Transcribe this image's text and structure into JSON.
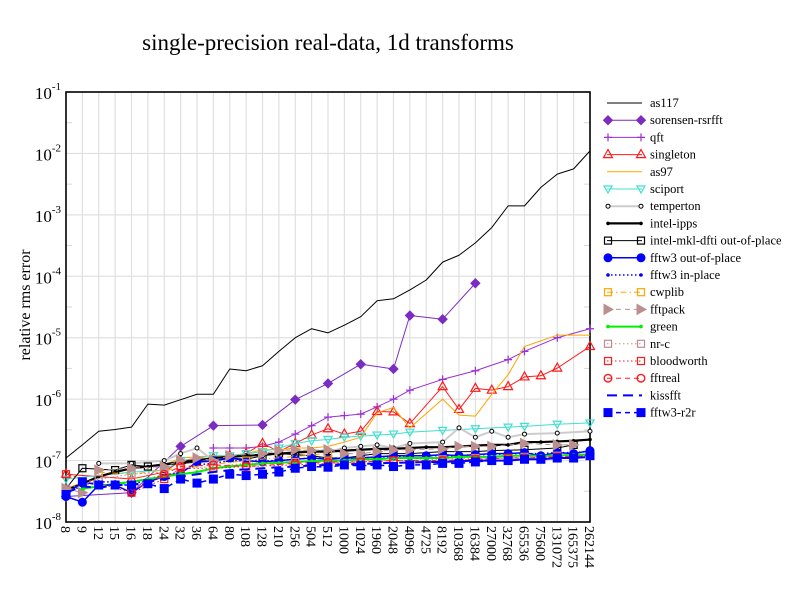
{
  "chart_data": {
    "type": "line",
    "title": "single-precision real-data, 1d transforms",
    "xlabel": "",
    "ylabel": "relative rms error",
    "yscale": "log",
    "ylim": [
      1e-08,
      0.1
    ],
    "yticks": [
      {
        "base": "10",
        "exp": "-8",
        "value": 1e-08
      },
      {
        "base": "10",
        "exp": "-7",
        "value": 1e-07
      },
      {
        "base": "10",
        "exp": "-6",
        "value": 1e-06
      },
      {
        "base": "10",
        "exp": "-5",
        "value": 1e-05
      },
      {
        "base": "10",
        "exp": "-4",
        "value": 0.0001
      },
      {
        "base": "10",
        "exp": "-3",
        "value": 0.001
      },
      {
        "base": "10",
        "exp": "-2",
        "value": 0.01
      },
      {
        "base": "10",
        "exp": "-1",
        "value": 0.1
      }
    ],
    "grid": true,
    "legend_position": "right",
    "categories": [
      "8",
      "9",
      "12",
      "15",
      "16",
      "18",
      "24",
      "32",
      "36",
      "64",
      "80",
      "108",
      "128",
      "210",
      "256",
      "504",
      "512",
      "1000",
      "1024",
      "1960",
      "2048",
      "4096",
      "4725",
      "8192",
      "10368",
      "16384",
      "27000",
      "32768",
      "65536",
      "75600",
      "131072",
      "165375",
      "262144"
    ],
    "series": [
      {
        "name": "as117",
        "color": "#000000",
        "dash": "solid",
        "marker": "none",
        "width": 1,
        "values": [
          1.1e-07,
          1.8e-07,
          3e-07,
          3.2e-07,
          3.5e-07,
          8.3e-07,
          8e-07,
          9.8e-07,
          1.2e-06,
          1.2e-06,
          3.1e-06,
          2.9e-06,
          3.5e-06,
          6e-06,
          1e-05,
          1.4e-05,
          1.2e-05,
          1.6e-05,
          2.2e-05,
          4e-05,
          4.3e-05,
          6e-05,
          8.7e-05,
          0.00017,
          0.00022,
          0.00035,
          0.00062,
          0.0014,
          0.0014,
          0.0028,
          0.0046,
          0.0056,
          0.011
        ]
      },
      {
        "name": "sorensen-rsrfft",
        "color": "#7b2cc2",
        "dash": "solid",
        "marker": "diamond",
        "width": 1,
        "values": [
          2.6e-08,
          null,
          null,
          null,
          3e-08,
          null,
          null,
          1.7e-07,
          null,
          3.7e-07,
          null,
          null,
          3.8e-07,
          null,
          9.8e-07,
          null,
          1.8e-06,
          null,
          3.7e-06,
          null,
          3.1e-06,
          2.3e-05,
          null,
          2e-05,
          null,
          7.7e-05,
          null,
          null,
          null,
          null,
          null,
          null,
          null
        ]
      },
      {
        "name": "qft",
        "color": "#9b2fd6",
        "dash": "solid",
        "marker": "plus",
        "width": 1,
        "values": [
          null,
          null,
          null,
          null,
          null,
          null,
          null,
          null,
          null,
          1.6e-07,
          1.6e-07,
          1.6e-07,
          1.7e-07,
          2e-07,
          2.7e-07,
          3.7e-07,
          5.1e-07,
          5.4e-07,
          5.7e-07,
          7.5e-07,
          1e-06,
          1.4e-06,
          null,
          2.1e-06,
          null,
          2.9e-06,
          null,
          4.4e-06,
          6e-06,
          null,
          1e-05,
          null,
          1.4e-05
        ]
      },
      {
        "name": "singleton",
        "color": "#ff1a1a",
        "dash": "solid",
        "marker": "triangle",
        "width": 1,
        "values": [
          6e-08,
          null,
          null,
          null,
          5e-08,
          null,
          6.5e-08,
          1e-07,
          null,
          1.1e-07,
          1.2e-07,
          1.3e-07,
          1.9e-07,
          1.4e-07,
          1.9e-07,
          2.6e-07,
          3.3e-07,
          2.7e-07,
          3e-07,
          6.3e-07,
          6.2e-07,
          4e-07,
          null,
          1.6e-06,
          6.8e-07,
          1.5e-06,
          1.4e-06,
          1.6e-06,
          2.3e-06,
          2.4e-06,
          3.2e-06,
          null,
          7.2e-06
        ]
      },
      {
        "name": "as97",
        "color": "#ffa500",
        "dash": "solid",
        "marker": "none",
        "width": 1,
        "values": [
          3.5e-08,
          null,
          5.5e-08,
          null,
          7.5e-08,
          null,
          8.5e-08,
          1.1e-07,
          null,
          1.2e-07,
          1.2e-07,
          1.3e-07,
          1.5e-07,
          1.5e-07,
          1.6e-07,
          1.6e-07,
          1.7e-07,
          2e-07,
          2.4e-07,
          6e-07,
          7.3e-07,
          3.4e-07,
          null,
          1e-06,
          5.5e-07,
          5.3e-07,
          1.2e-06,
          2.5e-06,
          7.2e-06,
          null,
          1.1e-05,
          null,
          1.1e-05
        ]
      },
      {
        "name": "sciport",
        "color": "#40e0d0",
        "dash": "solid",
        "marker": "triangle-down",
        "width": 1,
        "values": [
          5e-08,
          null,
          null,
          null,
          6.5e-08,
          null,
          7e-08,
          1e-07,
          null,
          1.2e-07,
          1.2e-07,
          1.3e-07,
          1.4e-07,
          1.6e-07,
          1.9e-07,
          2.1e-07,
          2.2e-07,
          2.4e-07,
          2.5e-07,
          2.6e-07,
          2.7e-07,
          2.9e-07,
          null,
          3.1e-07,
          null,
          3.3e-07,
          null,
          3.5e-07,
          3.6e-07,
          null,
          3.9e-07,
          null,
          4.1e-07
        ]
      },
      {
        "name": "temperton",
        "color": "#cccccc",
        "dash": "solid",
        "marker": "circle-open-small",
        "width": 2,
        "values": [
          null,
          null,
          9e-08,
          null,
          9e-08,
          null,
          1e-07,
          1.3e-07,
          1.6e-07,
          1e-07,
          1.1e-07,
          1.2e-07,
          1.2e-07,
          1.3e-07,
          1.4e-07,
          1.5e-07,
          1.4e-07,
          1.6e-07,
          1.7e-07,
          1.8e-07,
          1.6e-07,
          1.9e-07,
          null,
          2e-07,
          3.4e-07,
          2.4e-07,
          3e-07,
          2.4e-07,
          2.7e-07,
          null,
          2.8e-07,
          null,
          3e-07
        ]
      },
      {
        "name": "intel-ipps",
        "color": "#000000",
        "dash": "solid",
        "marker": "dot-small",
        "width": 2.2,
        "values": [
          3.3e-08,
          4.2e-08,
          5.5e-08,
          6.5e-08,
          7.5e-08,
          8e-08,
          8.7e-08,
          9.5e-08,
          1e-07,
          1.1e-07,
          1.15e-07,
          1.2e-07,
          1.25e-07,
          1.3e-07,
          1.35e-07,
          1.4e-07,
          1.4e-07,
          1.45e-07,
          1.5e-07,
          1.55e-07,
          1.55e-07,
          1.6e-07,
          1.65e-07,
          1.65e-07,
          1.7e-07,
          1.75e-07,
          1.8e-07,
          1.8e-07,
          2e-07,
          2e-07,
          2.05e-07,
          2.1e-07,
          2.2e-07
        ]
      },
      {
        "name": "intel-mkl-dfti out-of-place",
        "color": "#000000",
        "dash": "solid",
        "marker": "square-open",
        "width": 1,
        "values": [
          3.5e-08,
          7.5e-08,
          null,
          7e-08,
          8.5e-08,
          8e-08,
          null,
          null,
          null,
          1e-07,
          1.1e-07,
          1.05e-07,
          1.2e-07,
          1.3e-07,
          1.25e-07,
          1.2e-07,
          1.1e-07,
          1.1e-07,
          1.2e-07,
          1.3e-07,
          1.3e-07,
          1.3e-07,
          null,
          1.4e-07,
          null,
          1.4e-07,
          1.45e-07,
          null,
          1.5e-07,
          null,
          1.6e-07,
          1.8e-07,
          null
        ]
      },
      {
        "name": "fftw3 out-of-place",
        "color": "#0000ff",
        "dash": "solid",
        "marker": "circle-filled",
        "width": 1.5,
        "values": [
          2.6e-08,
          2.1e-08,
          4e-08,
          4e-08,
          3e-08,
          4.5e-08,
          5.5e-08,
          6.2e-08,
          9.5e-08,
          9.8e-08,
          1.1e-07,
          1e-07,
          9.5e-08,
          1e-07,
          1.05e-07,
          1.1e-07,
          1.05e-07,
          1.1e-07,
          1.1e-07,
          1.15e-07,
          1.2e-07,
          1.2e-07,
          1.2e-07,
          1.25e-07,
          1.2e-07,
          1.25e-07,
          1.3e-07,
          1.3e-07,
          1.35e-07,
          1.2e-07,
          1.35e-07,
          1.3e-07,
          1.45e-07
        ]
      },
      {
        "name": "fftw3 in-place",
        "color": "#0000ff",
        "dash": "dotted",
        "marker": "dot-small",
        "width": 1.5,
        "values": [
          2.8e-08,
          4e-08,
          4.5e-08,
          4.5e-08,
          4e-08,
          5e-08,
          5.8e-08,
          6.5e-08,
          8.5e-08,
          9e-08,
          1e-07,
          9.8e-08,
          1e-07,
          1e-07,
          1.05e-07,
          1.1e-07,
          1.1e-07,
          1.1e-07,
          1.1e-07,
          1.15e-07,
          1.15e-07,
          1.2e-07,
          1.2e-07,
          1.2e-07,
          1.2e-07,
          1.25e-07,
          1.25e-07,
          1.3e-07,
          1.3e-07,
          1.3e-07,
          1.35e-07,
          1.35e-07,
          1.4e-07
        ]
      },
      {
        "name": "cwplib",
        "color": "#ffa500",
        "dash": "dashdot",
        "marker": "square-open",
        "width": 1,
        "values": [
          null,
          null,
          6.5e-08,
          null,
          6e-08,
          null,
          7e-08,
          null,
          null,
          null,
          null,
          1e-07,
          null,
          null,
          null,
          null,
          1.3e-07,
          null,
          null,
          null,
          null,
          null,
          null,
          null,
          null,
          null,
          null,
          null,
          null,
          null,
          null,
          null,
          null
        ]
      },
      {
        "name": "fftpack",
        "color": "#bc8f8f",
        "dash": "dashed",
        "marker": "triangle-right",
        "width": 1,
        "values": [
          3.5e-08,
          3e-08,
          7e-08,
          null,
          7.5e-08,
          null,
          8e-08,
          1e-07,
          1.1e-07,
          1e-07,
          1.2e-07,
          null,
          1.3e-07,
          1.45e-07,
          1.5e-07,
          1.45e-07,
          1.5e-07,
          1.3e-07,
          1.3e-07,
          1.4e-07,
          1.5e-07,
          1.5e-07,
          null,
          1.55e-07,
          1.7e-07,
          1.7e-07,
          1.7e-07,
          null,
          1.9e-07,
          null,
          1.8e-07,
          1.8e-07,
          null
        ]
      },
      {
        "name": "green",
        "color": "#00ee00",
        "dash": "solid",
        "marker": "dot-small",
        "width": 2,
        "values": [
          null,
          3.5e-08,
          3.8e-08,
          4.2e-08,
          4.5e-08,
          5e-08,
          5.5e-08,
          6e-08,
          6.5e-08,
          7.5e-08,
          8e-08,
          8.5e-08,
          9e-08,
          9.2e-08,
          9.5e-08,
          9.8e-08,
          1e-07,
          1e-07,
          1.05e-07,
          1.05e-07,
          1.1e-07,
          1.1e-07,
          1.1e-07,
          1.1e-07,
          1.15e-07,
          1.15e-07,
          1.15e-07,
          1.2e-07,
          1.2e-07,
          1.2e-07,
          1.2e-07,
          1.25e-07,
          1.25e-07
        ]
      },
      {
        "name": "nr-c",
        "color": "#bc8f8f",
        "dash": "dotted",
        "marker": "square-open",
        "width": 1,
        "values": [
          3.5e-08,
          null,
          5e-08,
          null,
          6e-08,
          null,
          6.5e-08,
          7.5e-08,
          null,
          8e-08,
          null,
          9e-08,
          null,
          null,
          9.5e-08,
          null,
          9.5e-08,
          null,
          1e-07,
          null,
          1e-07,
          null,
          null,
          1.05e-07,
          null,
          1.1e-07,
          null,
          1.1e-07,
          1.15e-07,
          null,
          1.2e-07,
          null,
          1.2e-07
        ]
      },
      {
        "name": "bloodworth",
        "color": "#ff1a1a",
        "dash": "dotted",
        "marker": "square-open",
        "width": 1,
        "values": [
          6e-08,
          null,
          null,
          null,
          3e-08,
          null,
          5e-08,
          7.5e-08,
          null,
          7.5e-08,
          null,
          8e-08,
          null,
          null,
          8.5e-08,
          null,
          9e-08,
          null,
          9.5e-08,
          null,
          1e-07,
          null,
          null,
          1e-07,
          null,
          1.05e-07,
          null,
          1.1e-07,
          1.1e-07,
          null,
          1.15e-07,
          null,
          1.2e-07
        ]
      },
      {
        "name": "fftreal",
        "color": "#ff1a1a",
        "dash": "dashed",
        "marker": "circle-open",
        "width": 1,
        "values": [
          null,
          null,
          null,
          null,
          3.2e-08,
          null,
          6e-08,
          8e-08,
          null,
          8.5e-08,
          null,
          8e-08,
          null,
          null,
          9e-08,
          null,
          9.5e-08,
          null,
          9.5e-08,
          null,
          1e-07,
          null,
          null,
          1e-07,
          null,
          1.05e-07,
          null,
          1.1e-07,
          1.1e-07,
          null,
          1.15e-07,
          null,
          1.2e-07
        ]
      },
      {
        "name": "kissfft",
        "color": "#0000ff",
        "dash": "longdash",
        "marker": "none",
        "width": 2,
        "values": [
          3e-08,
          3.8e-08,
          3.6e-08,
          4e-08,
          4e-08,
          4.5e-08,
          5e-08,
          5.5e-08,
          6e-08,
          6.5e-08,
          7e-08,
          7.2e-08,
          7.5e-08,
          7.8e-08,
          8e-08,
          8.3e-08,
          8.5e-08,
          8.7e-08,
          8.8e-08,
          9e-08,
          9.2e-08,
          9.3e-08,
          9.5e-08,
          9.5e-08,
          9.7e-08,
          1e-07,
          1e-07,
          1e-07,
          1.05e-07,
          1.05e-07,
          1.1e-07,
          1.1e-07,
          1.15e-07
        ]
      },
      {
        "name": "fftw3-r2r",
        "color": "#0000ff",
        "dash": "dashed",
        "marker": "square-filled",
        "width": 1.5,
        "values": [
          2.8e-08,
          4.5e-08,
          4e-08,
          4e-08,
          4e-08,
          4.2e-08,
          3.5e-08,
          5e-08,
          4.3e-08,
          5e-08,
          6e-08,
          5.7e-08,
          6e-08,
          6.5e-08,
          7.5e-08,
          8e-08,
          7.8e-08,
          8.5e-08,
          8.2e-08,
          8.5e-08,
          8e-08,
          8.5e-08,
          8.5e-08,
          9e-08,
          9e-08,
          9.5e-08,
          1e-07,
          1e-07,
          1.05e-07,
          1.05e-07,
          1.1e-07,
          1.1e-07,
          1.2e-07
        ]
      }
    ]
  }
}
